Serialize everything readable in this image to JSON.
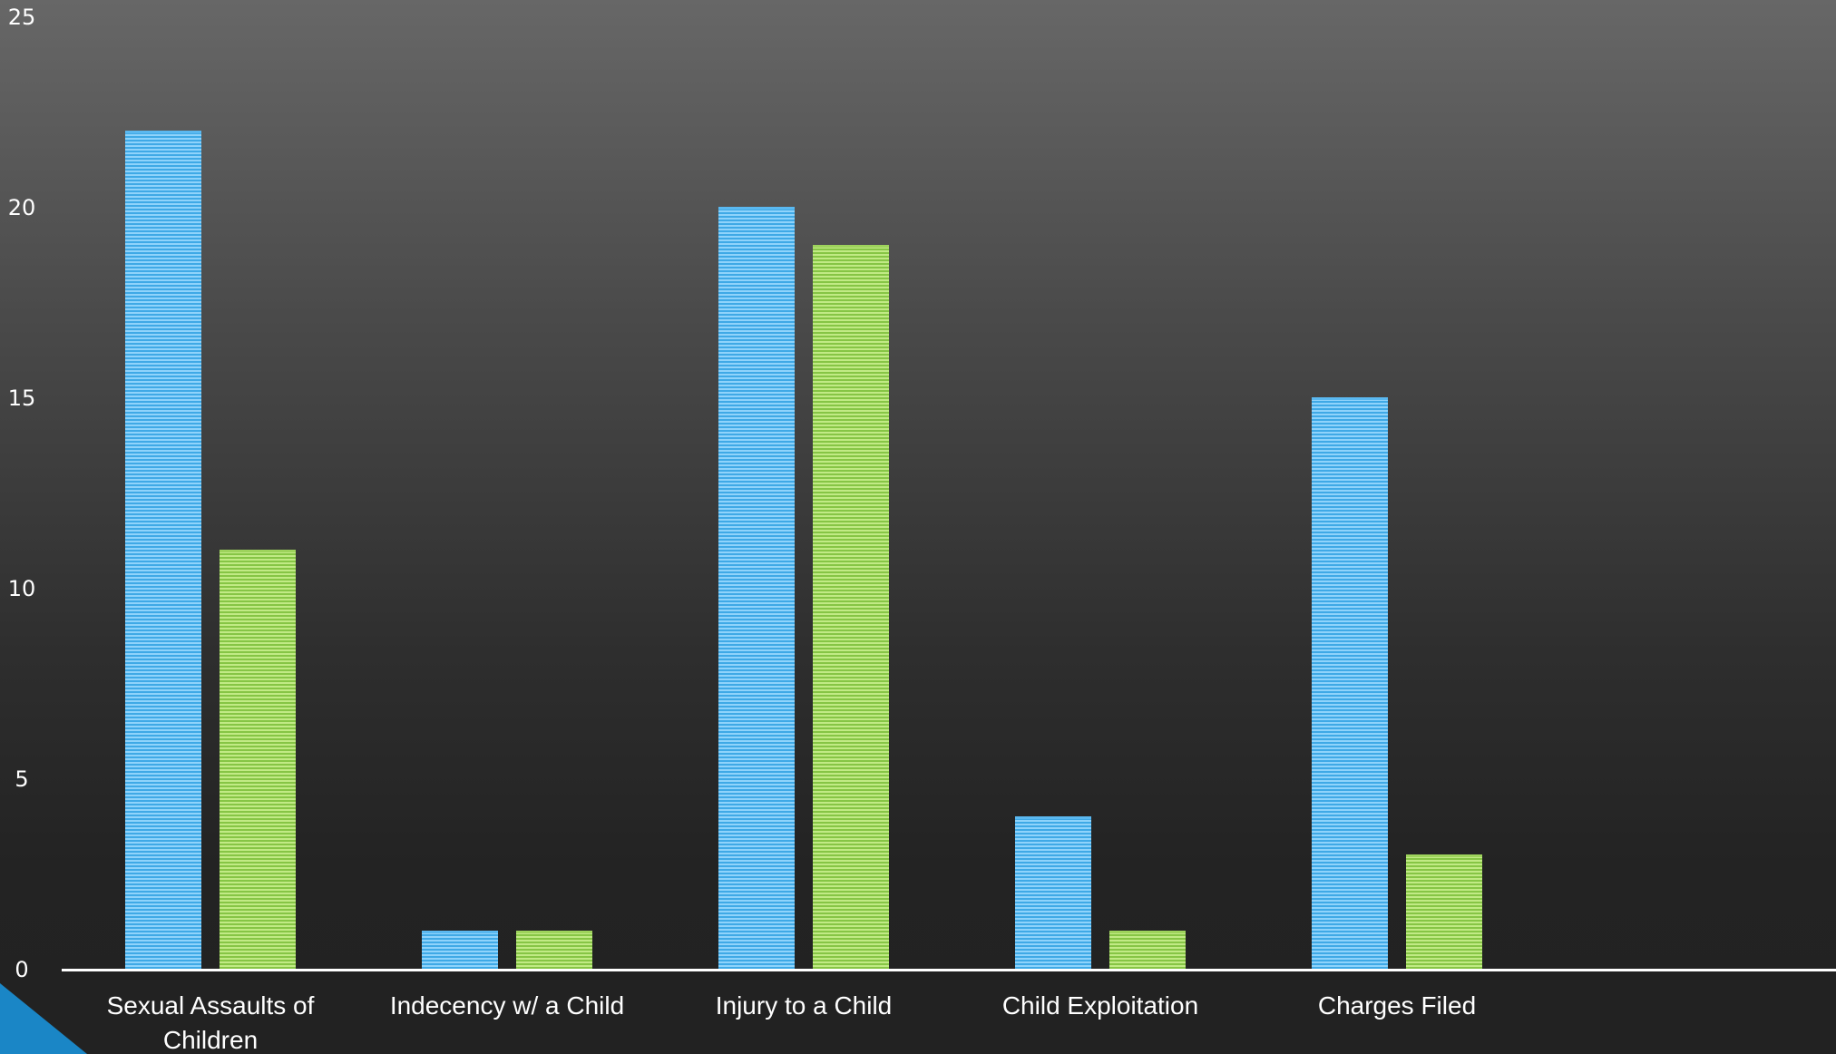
{
  "chart_data": {
    "type": "bar",
    "categories": [
      "Sexual Assaults of Children",
      "Indecency w/ a Child",
      "Injury to a Child",
      "Child Exploitation",
      "Charges Filed"
    ],
    "series": [
      {
        "values": [
          22,
          1,
          20,
          4,
          15
        ],
        "color": "#5ab8f0"
      },
      {
        "values": [
          11,
          1,
          19,
          1,
          3
        ],
        "color": "#9ed35c"
      }
    ],
    "ylim": [
      0,
      25
    ],
    "yticks": [
      0,
      5,
      10,
      15,
      20,
      25
    ],
    "grid": false,
    "legend": "none",
    "title": "",
    "xlabel": "",
    "ylabel": ""
  },
  "colors": {
    "axis": "#ffffff",
    "text": "#ffffff",
    "corner_accent": "#1a86c6"
  }
}
